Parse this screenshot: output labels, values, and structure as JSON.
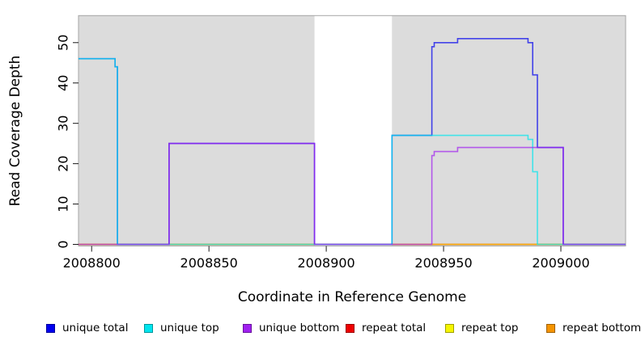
{
  "chart_data": {
    "type": "line",
    "step_style": "post",
    "title": "",
    "xlabel": "Coordinate in Reference Genome",
    "ylabel": "Read Coverage Depth",
    "xlim": [
      2008794.4,
      2009027.6
    ],
    "ylim": [
      -0.4,
      56.7
    ],
    "xticks": [
      2008800,
      2008850,
      2008900,
      2008950,
      2009000
    ],
    "yticks": [
      0,
      10,
      20,
      30,
      40,
      50
    ],
    "grid": false,
    "figure_background": "#ffffff",
    "plot_background": "#dcdcdc",
    "border_color": "#a6a6a6",
    "tick_color": "#1a1a1a",
    "highlight_band": {
      "x0": 2008895,
      "x1": 2008928,
      "color": "#ffffff"
    },
    "legend_position": "bottom",
    "series": [
      {
        "name": "unique total",
        "color": "#0000ee",
        "points": [
          [
            2008794.4,
            46
          ],
          [
            2008810,
            44
          ],
          [
            2008811,
            0
          ],
          [
            2008833,
            25
          ],
          [
            2008895,
            0
          ],
          [
            2008928,
            27
          ],
          [
            2008945,
            49
          ],
          [
            2008946,
            50
          ],
          [
            2008956,
            51
          ],
          [
            2008986,
            50
          ],
          [
            2008988,
            42
          ],
          [
            2008990,
            24
          ],
          [
            2009001,
            0
          ],
          [
            2009027.6,
            0
          ]
        ]
      },
      {
        "name": "unique top",
        "color": "#00e5ee",
        "points": [
          [
            2008794.4,
            46
          ],
          [
            2008810,
            44
          ],
          [
            2008811,
            0
          ],
          [
            2008928,
            27
          ],
          [
            2008986,
            26
          ],
          [
            2008988,
            18
          ],
          [
            2008990,
            0
          ],
          [
            2009027.6,
            0
          ]
        ]
      },
      {
        "name": "unique bottom",
        "color": "#a020f0",
        "points": [
          [
            2008794.4,
            0
          ],
          [
            2008833,
            25
          ],
          [
            2008895,
            0
          ],
          [
            2008945,
            22
          ],
          [
            2008946,
            23
          ],
          [
            2008956,
            24
          ],
          [
            2009001,
            0
          ],
          [
            2009027.6,
            0
          ]
        ]
      },
      {
        "name": "repeat total",
        "color": "#ee0000",
        "points": [
          [
            2008794.4,
            0
          ],
          [
            2009027.6,
            0
          ]
        ]
      },
      {
        "name": "repeat top",
        "color": "#f5f500",
        "points": [
          [
            2008794.4,
            0
          ],
          [
            2009027.6,
            0
          ]
        ]
      },
      {
        "name": "repeat bottom",
        "color": "#f59400",
        "points": [
          [
            2008794.4,
            0
          ],
          [
            2009027.6,
            0
          ]
        ]
      }
    ],
    "draw_order": [
      "repeat total",
      "repeat top",
      "repeat bottom",
      "unique total",
      "unique top",
      "unique bottom"
    ]
  },
  "legend_item_lefts": [
    57,
    178,
    300,
    427,
    550,
    675
  ]
}
